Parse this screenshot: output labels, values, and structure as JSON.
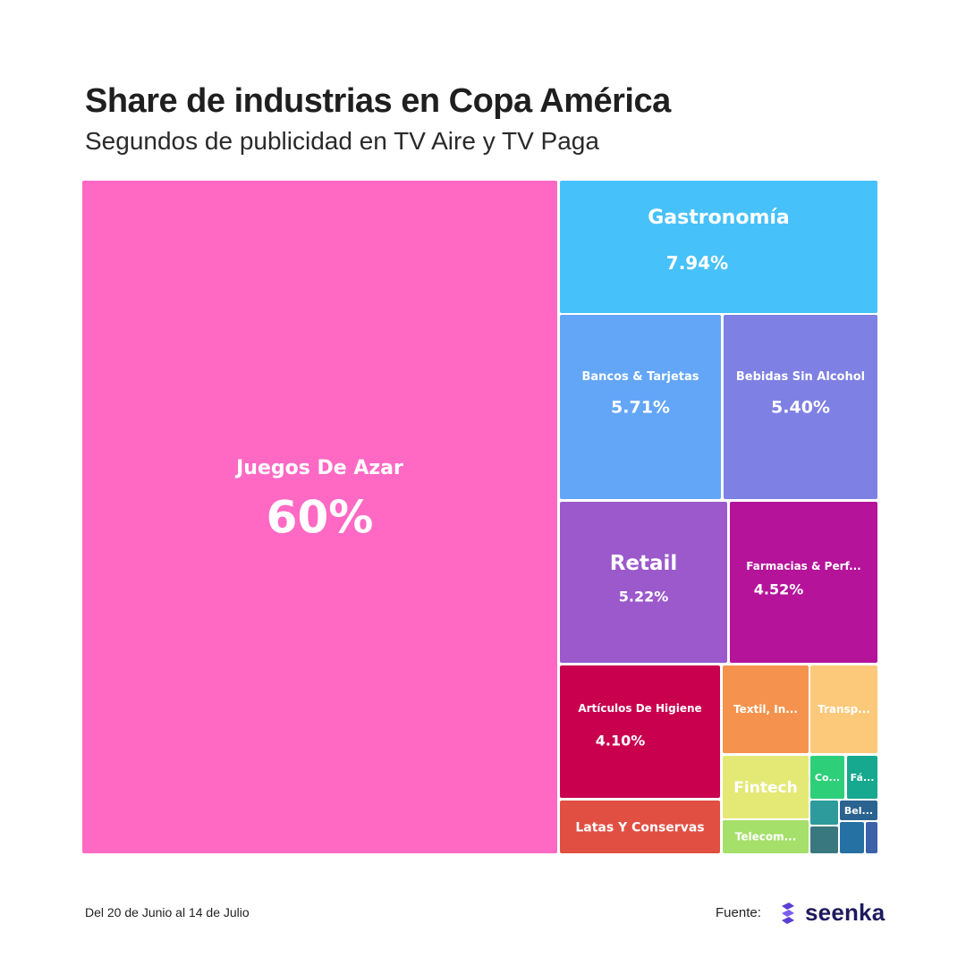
{
  "header": {
    "title": "Share de industrias en Copa América",
    "subtitle": "Segundos de publicidad en TV Aire y TV Paga"
  },
  "footer": {
    "date_range": "Del 20 de Junio al 14 de Julio",
    "source_label": "Fuente:",
    "brand": "seenka"
  },
  "colors": {
    "juegos": "#ff69c4",
    "gastronomia": "#47c1fa",
    "bancos": "#63a6f7",
    "bebidas": "#7e80e4",
    "retail": "#9b59cc",
    "farmacias": "#b6139b",
    "higiene": "#c8004e",
    "latas": "#e04f42",
    "textil": "#f5934e",
    "transporte": "#fcc97a",
    "fintech": "#e4e976",
    "telecom": "#a5e06a",
    "co": "#2ecf79",
    "fa": "#16a98f",
    "bel": "#2a6390",
    "small1": "#2d9b9b",
    "small2": "#3a7880",
    "small3": "#2671a3",
    "small4": "#3b61a8",
    "brand": "#5b3fd4"
  },
  "chart_data": {
    "type": "treemap",
    "title": "Share de industrias en Copa América",
    "subtitle": "Segundos de publicidad en TV Aire y TV Paga",
    "unit": "%",
    "items": [
      {
        "id": "juegos",
        "label": "Juegos De Azar",
        "value": 60,
        "value_label": "60%"
      },
      {
        "id": "gastronomia",
        "label": "Gastronomía",
        "value": 7.94,
        "value_label": "7.94%"
      },
      {
        "id": "bancos",
        "label": "Bancos & Tarjetas",
        "value": 5.71,
        "value_label": "5.71%"
      },
      {
        "id": "bebidas",
        "label": "Bebidas Sin Alcohol",
        "value": 5.4,
        "value_label": "5.40%"
      },
      {
        "id": "retail",
        "label": "Retail",
        "value": 5.22,
        "value_label": "5.22%"
      },
      {
        "id": "farmacias",
        "label": "Farmacias & Perf...",
        "value": 4.52,
        "value_label": "4.52%"
      },
      {
        "id": "higiene",
        "label": "Artículos De Higiene",
        "value": 4.1,
        "value_label": "4.10%"
      },
      {
        "id": "latas",
        "label": "Latas Y Conservas",
        "value": 1.3,
        "value_label": ""
      },
      {
        "id": "textil",
        "label": "Textil, In...",
        "value": 1.4,
        "value_label": ""
      },
      {
        "id": "transporte",
        "label": "Transp...",
        "value": 1.1,
        "value_label": ""
      },
      {
        "id": "fintech",
        "label": "Fintech",
        "value": 1.0,
        "value_label": ""
      },
      {
        "id": "telecom",
        "label": "Telecom...",
        "value": 0.5,
        "value_label": ""
      },
      {
        "id": "co",
        "label": "Co...",
        "value": 0.4,
        "value_label": ""
      },
      {
        "id": "fa",
        "label": "Fá...",
        "value": 0.35,
        "value_label": ""
      },
      {
        "id": "bel",
        "label": "Bel...",
        "value": 0.2,
        "value_label": ""
      },
      {
        "id": "small1",
        "label": "",
        "value": 0.15,
        "value_label": ""
      },
      {
        "id": "small2",
        "label": "",
        "value": 0.15,
        "value_label": ""
      },
      {
        "id": "small3",
        "label": "",
        "value": 0.12,
        "value_label": ""
      },
      {
        "id": "small4",
        "label": "",
        "value": 0.06,
        "value_label": ""
      }
    ]
  }
}
